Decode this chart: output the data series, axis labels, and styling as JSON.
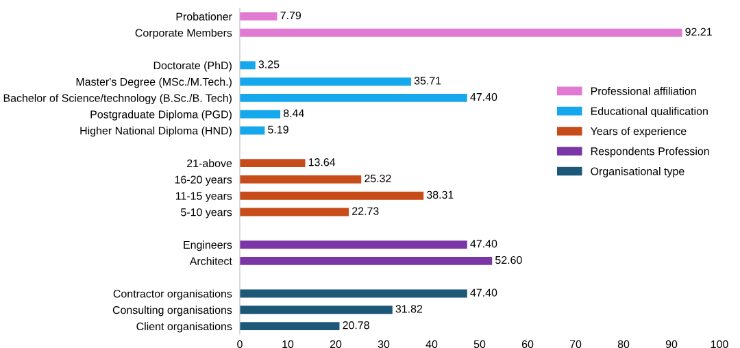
{
  "chart_data": {
    "type": "bar",
    "orientation": "horizontal",
    "categories": [
      "Probationer",
      "Corporate Members",
      null,
      "Doctorate (PhD)",
      "Master's Degree (MSc./M.Tech.)",
      "Bachelor of Science/technology (B.Sc./B. Tech)",
      "Postgraduate Diploma (PGD)",
      "Higher National Diploma (HND)",
      null,
      "21-above",
      "16-20 years",
      "11-15 years",
      "5-10 years",
      null,
      "Engineers",
      "Architect",
      null,
      "Contractor organisations",
      "Consulting organisations",
      "Client organisations"
    ],
    "series": [
      {
        "name": "Professional affiliation",
        "color": "#e07ad2",
        "values": [
          7.79,
          92.21,
          null,
          null,
          null,
          null,
          null,
          null,
          null,
          null,
          null,
          null,
          null,
          null,
          null,
          null,
          null,
          null,
          null,
          null
        ],
        "value_labels": [
          "7.79",
          "92.21",
          null,
          null,
          null,
          null,
          null,
          null,
          null,
          null,
          null,
          null,
          null,
          null,
          null,
          null,
          null,
          null,
          null,
          null
        ]
      },
      {
        "name": "Educational qualification",
        "color": "#16a8ec",
        "values": [
          null,
          null,
          null,
          3.25,
          35.71,
          47.4,
          8.44,
          5.19,
          null,
          null,
          null,
          null,
          null,
          null,
          null,
          null,
          null,
          null,
          null,
          null
        ],
        "value_labels": [
          null,
          null,
          null,
          "3.25",
          "35.71",
          "47.40",
          "8.44",
          "5.19",
          null,
          null,
          null,
          null,
          null,
          null,
          null,
          null,
          null,
          null,
          null,
          null
        ]
      },
      {
        "name": "Years of experience",
        "color": "#c84b1a",
        "values": [
          null,
          null,
          null,
          null,
          null,
          null,
          null,
          null,
          null,
          13.64,
          25.32,
          38.31,
          22.73,
          null,
          null,
          null,
          null,
          null,
          null,
          null
        ],
        "value_labels": [
          null,
          null,
          null,
          null,
          null,
          null,
          null,
          null,
          null,
          "13.64",
          "25.32",
          "38.31",
          "22.73",
          null,
          null,
          null,
          null,
          null,
          null,
          null
        ]
      },
      {
        "name": "Respondents Profession",
        "color": "#7a35a6",
        "values": [
          null,
          null,
          null,
          null,
          null,
          null,
          null,
          null,
          null,
          null,
          null,
          null,
          null,
          null,
          47.4,
          52.6,
          null,
          null,
          null,
          null
        ],
        "value_labels": [
          null,
          null,
          null,
          null,
          null,
          null,
          null,
          null,
          null,
          null,
          null,
          null,
          null,
          null,
          "47.40",
          "52.60",
          null,
          null,
          null,
          null
        ]
      },
      {
        "name": "Organisational type",
        "color": "#1d5878",
        "values": [
          null,
          null,
          null,
          null,
          null,
          null,
          null,
          null,
          null,
          null,
          null,
          null,
          null,
          null,
          null,
          null,
          null,
          47.4,
          31.82,
          20.78
        ],
        "value_labels": [
          null,
          null,
          null,
          null,
          null,
          null,
          null,
          null,
          null,
          null,
          null,
          null,
          null,
          null,
          null,
          null,
          null,
          "47.40",
          "31.82",
          "20.78"
        ]
      }
    ],
    "xlim": [
      0,
      100
    ],
    "xticks": [
      0,
      10,
      20,
      30,
      40,
      50,
      60,
      70,
      80,
      90,
      100
    ],
    "grid": false,
    "legend": "right"
  }
}
